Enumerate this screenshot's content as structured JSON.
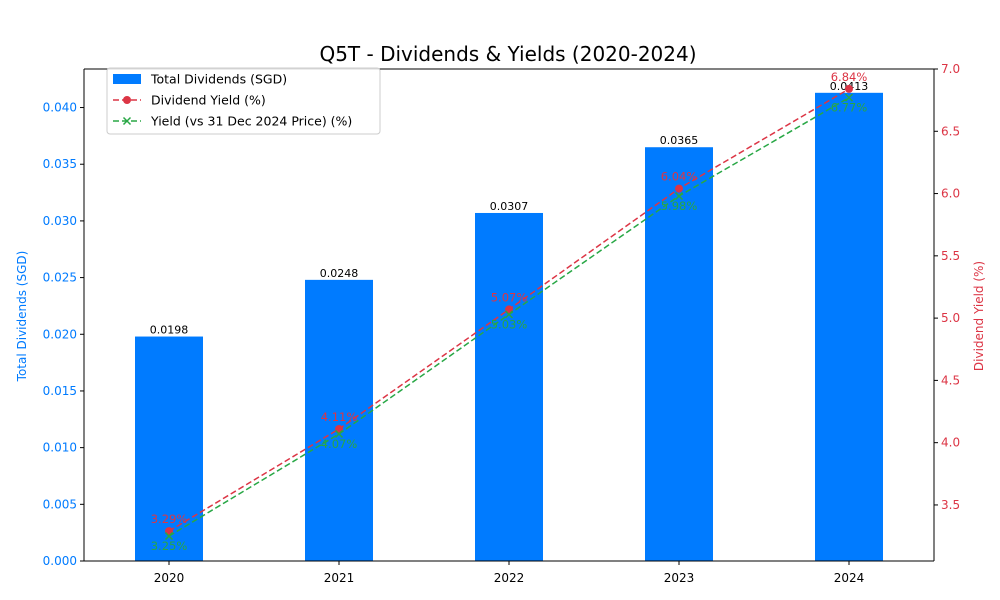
{
  "chart_data": {
    "type": "bar",
    "title": "Q5T - Dividends & Yields (2020-2024)",
    "xlabel": "",
    "ylabel": "Total Dividends (SGD)",
    "y2label": "Dividend Yield (%)",
    "categories": [
      "2020",
      "2021",
      "2022",
      "2023",
      "2024"
    ],
    "ylim": [
      0,
      0.0434
    ],
    "y2lim": [
      3.05,
      7.0
    ],
    "yticks": [
      "0.000",
      "0.005",
      "0.010",
      "0.015",
      "0.020",
      "0.025",
      "0.030",
      "0.035",
      "0.040"
    ],
    "y2ticks": [
      "3.5",
      "4.0",
      "4.5",
      "5.0",
      "5.5",
      "6.0",
      "6.5",
      "7.0"
    ],
    "legend_position": "upper-left",
    "grid": false,
    "series": [
      {
        "name": "Total Dividends (SGD)",
        "kind": "bar",
        "axis": "left",
        "color": "#007bff",
        "values": [
          0.0198,
          0.0248,
          0.0307,
          0.0365,
          0.0413
        ],
        "labels": [
          "0.0198",
          "0.0248",
          "0.0307",
          "0.0365",
          "0.0413"
        ]
      },
      {
        "name": "Dividend Yield (%)",
        "kind": "line",
        "axis": "right",
        "color": "#dc3545",
        "marker": "circle",
        "linestyle": "dashed",
        "values": [
          3.29,
          4.11,
          5.07,
          6.04,
          6.84
        ],
        "labels": [
          "3.29%",
          "4.11%",
          "5.07%",
          "6.04%",
          "6.84%"
        ]
      },
      {
        "name": "Yield (vs 31 Dec 2024 Price) (%)",
        "kind": "line",
        "axis": "right",
        "color": "#28a745",
        "marker": "x",
        "linestyle": "dashed",
        "values": [
          3.25,
          4.07,
          5.03,
          5.98,
          6.77
        ],
        "labels": [
          "3.25%",
          "4.07%",
          "5.03%",
          "5.98%",
          "6.77%"
        ]
      }
    ]
  }
}
